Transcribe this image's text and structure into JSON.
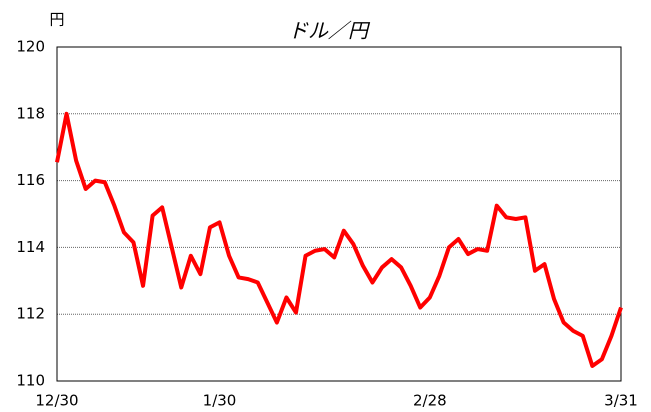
{
  "chart_data": {
    "type": "line",
    "title": "ドル／円",
    "y_unit": "円",
    "categories": [
      "12/30",
      null,
      null,
      null,
      null,
      null,
      null,
      null,
      null,
      null,
      null,
      null,
      null,
      null,
      null,
      null,
      null,
      "1/30",
      null,
      null,
      null,
      null,
      null,
      null,
      null,
      null,
      null,
      null,
      null,
      null,
      null,
      null,
      null,
      null,
      null,
      null,
      null,
      null,
      null,
      "2/28",
      null,
      null,
      null,
      null,
      null,
      null,
      null,
      null,
      null,
      null,
      null,
      null,
      null,
      null,
      null,
      null,
      null,
      null,
      null,
      "3/31"
    ],
    "series": [
      {
        "name": "ドル／円",
        "color": "#ff0000",
        "values": [
          116.55,
          118.0,
          116.6,
          115.75,
          116.0,
          115.95,
          115.25,
          114.45,
          114.15,
          112.85,
          114.95,
          115.2,
          114.0,
          112.8,
          113.75,
          113.2,
          114.6,
          114.75,
          113.75,
          113.1,
          113.05,
          112.95,
          112.35,
          111.75,
          112.5,
          112.05,
          113.75,
          113.9,
          113.95,
          113.7,
          114.5,
          114.1,
          113.45,
          112.95,
          113.4,
          113.65,
          113.4,
          112.85,
          112.2,
          112.5,
          113.15,
          114.0,
          114.25,
          113.8,
          113.95,
          113.9,
          115.25,
          114.9,
          114.85,
          114.9,
          113.3,
          113.5,
          112.45,
          111.75,
          111.5,
          111.35,
          110.45,
          110.65,
          111.35,
          112.2
        ]
      }
    ],
    "ylim": [
      110,
      120
    ],
    "yticks": [
      110,
      112,
      114,
      116,
      118,
      120
    ],
    "grid": true
  }
}
